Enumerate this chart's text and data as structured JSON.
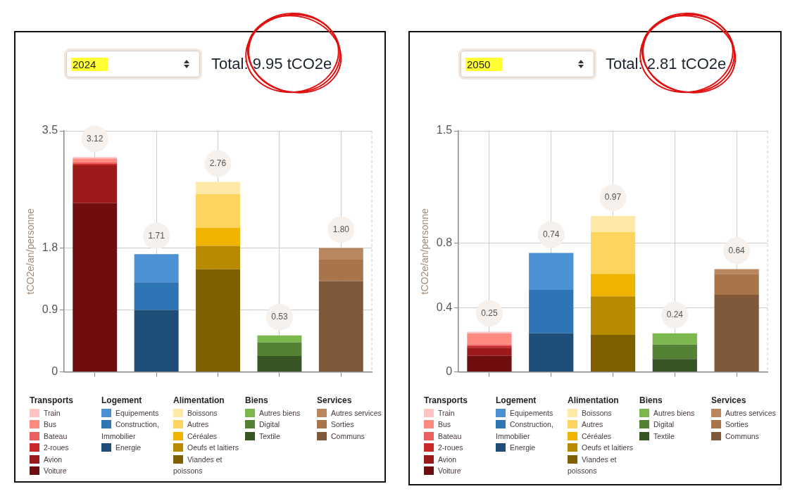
{
  "chart_data": [
    {
      "type": "bar",
      "title": "Total: 9.95 tCO2e",
      "subtitle": "2024",
      "ylabel": "tCO2e/an/personne",
      "categories": [
        null,
        null,
        null,
        null,
        null
      ],
      "stacked": true,
      "ylim": [
        0,
        3.5
      ],
      "yticks": [
        0,
        0.9,
        1.8,
        3.5
      ],
      "grid": true,
      "legend": "bottom",
      "totals": [
        "3.12",
        "1.71",
        "2.76",
        "0.53",
        "1.80"
      ],
      "annotations": [
        "Transports",
        "Logement",
        "Alimentation",
        "Biens",
        "Services"
      ],
      "series": [
        {
          "name": "Voiture",
          "color": "#6e0e0e",
          "values": [
            2.45,
            null,
            null,
            null,
            null
          ]
        },
        {
          "name": "Avion",
          "color": "#9c1a1a",
          "values": [
            0.55,
            null,
            null,
            null,
            null
          ]
        },
        {
          "name": "2-roues",
          "color": "#c82828",
          "values": [
            0.02,
            null,
            null,
            null,
            null
          ]
        },
        {
          "name": "Bateau",
          "color": "#e86060",
          "values": [
            0.02,
            null,
            null,
            null,
            null
          ]
        },
        {
          "name": "Bus",
          "color": "#ff8a80",
          "values": [
            0.06,
            null,
            null,
            null,
            null
          ]
        },
        {
          "name": "Train",
          "color": "#ffc4c4",
          "values": [
            0.02,
            null,
            null,
            null,
            null
          ]
        },
        {
          "name": "Energie",
          "color": "#1f4e79",
          "values": [
            null,
            0.9,
            null,
            null,
            null
          ]
        },
        {
          "name": "Construction, Immobilier",
          "color": "#2e75b6",
          "values": [
            null,
            0.4,
            null,
            null,
            null
          ]
        },
        {
          "name": "Equipements",
          "color": "#4a92d4",
          "values": [
            null,
            0.41,
            null,
            null,
            null
          ]
        },
        {
          "name": "Viandes et poissons",
          "color": "#7f6000",
          "values": [
            null,
            null,
            1.49,
            null,
            null
          ]
        },
        {
          "name": "Oeufs et laitiers",
          "color": "#b88a00",
          "values": [
            null,
            null,
            0.34,
            null,
            null
          ]
        },
        {
          "name": "Céréales",
          "color": "#f0b400",
          "values": [
            null,
            null,
            0.26,
            null,
            null
          ]
        },
        {
          "name": "Autres",
          "color": "#fcd45e",
          "values": [
            null,
            null,
            0.49,
            null,
            null
          ]
        },
        {
          "name": "Boissons",
          "color": "#ffe9a8",
          "values": [
            null,
            null,
            0.18,
            null,
            null
          ]
        },
        {
          "name": "Textile",
          "color": "#375623",
          "values": [
            null,
            null,
            null,
            0.23,
            null
          ]
        },
        {
          "name": "Digital",
          "color": "#548235",
          "values": [
            null,
            null,
            null,
            0.2,
            null
          ]
        },
        {
          "name": "Autres biens",
          "color": "#7ab84e",
          "values": [
            null,
            null,
            null,
            0.1,
            null
          ]
        },
        {
          "name": "Communs",
          "color": "#80583a",
          "values": [
            null,
            null,
            null,
            null,
            1.32
          ]
        },
        {
          "name": "Sorties",
          "color": "#a8744a",
          "values": [
            null,
            null,
            null,
            null,
            0.31
          ]
        },
        {
          "name": "Autres services",
          "color": "#b8875f",
          "values": [
            null,
            null,
            null,
            null,
            0.17
          ]
        }
      ]
    },
    {
      "type": "bar",
      "title": "Total: 2.81 tCO2e",
      "subtitle": "2050",
      "ylabel": "tCO2e/an/personne",
      "categories": [
        null,
        null,
        null,
        null,
        null
      ],
      "stacked": true,
      "ylim": [
        0,
        1.5
      ],
      "yticks": [
        0,
        0.4,
        0.8,
        1.5
      ],
      "grid": true,
      "legend": "bottom",
      "totals": [
        "0.25",
        "0.74",
        "0.97",
        "0.24",
        "0.64"
      ],
      "annotations": [
        "Transports",
        "Logement",
        "Alimentation",
        "Biens",
        "Services"
      ],
      "series": [
        {
          "name": "Voiture",
          "color": "#6e0e0e",
          "values": [
            0.1,
            null,
            null,
            null,
            null
          ]
        },
        {
          "name": "Avion",
          "color": "#9c1a1a",
          "values": [
            0.05,
            null,
            null,
            null,
            null
          ]
        },
        {
          "name": "2-roues",
          "color": "#c82828",
          "values": [
            0.01,
            null,
            null,
            null,
            null
          ]
        },
        {
          "name": "Bateau",
          "color": "#e86060",
          "values": [
            0.01,
            null,
            null,
            null,
            null
          ]
        },
        {
          "name": "Bus",
          "color": "#ff8a80",
          "values": [
            0.07,
            null,
            null,
            null,
            null
          ]
        },
        {
          "name": "Train",
          "color": "#ffc4c4",
          "values": [
            0.01,
            null,
            null,
            null,
            null
          ]
        },
        {
          "name": "Energie",
          "color": "#1f4e79",
          "values": [
            null,
            0.24,
            null,
            null,
            null
          ]
        },
        {
          "name": "Construction, Immobilier",
          "color": "#2e75b6",
          "values": [
            null,
            0.27,
            null,
            null,
            null
          ]
        },
        {
          "name": "Equipements",
          "color": "#4a92d4",
          "values": [
            null,
            0.23,
            null,
            null,
            null
          ]
        },
        {
          "name": "Viandes et poissons",
          "color": "#7f6000",
          "values": [
            null,
            null,
            0.23,
            null,
            null
          ]
        },
        {
          "name": "Oeufs et laitiers",
          "color": "#b88a00",
          "values": [
            null,
            null,
            0.24,
            null,
            null
          ]
        },
        {
          "name": "Céréales",
          "color": "#f0b400",
          "values": [
            null,
            null,
            0.14,
            null,
            null
          ]
        },
        {
          "name": "Autres",
          "color": "#fcd45e",
          "values": [
            null,
            null,
            0.26,
            null,
            null
          ]
        },
        {
          "name": "Boissons",
          "color": "#ffe9a8",
          "values": [
            null,
            null,
            0.1,
            null,
            null
          ]
        },
        {
          "name": "Textile",
          "color": "#375623",
          "values": [
            null,
            null,
            null,
            0.08,
            null
          ]
        },
        {
          "name": "Digital",
          "color": "#548235",
          "values": [
            null,
            null,
            null,
            0.09,
            null
          ]
        },
        {
          "name": "Autres biens",
          "color": "#7ab84e",
          "values": [
            null,
            null,
            null,
            0.07,
            null
          ]
        },
        {
          "name": "Communs",
          "color": "#80583a",
          "values": [
            null,
            null,
            null,
            null,
            0.48
          ]
        },
        {
          "name": "Sorties",
          "color": "#a8744a",
          "values": [
            null,
            null,
            null,
            null,
            0.13
          ]
        },
        {
          "name": "Autres services",
          "color": "#b8875f",
          "values": [
            null,
            null,
            null,
            null,
            0.03
          ]
        }
      ]
    }
  ]
}
